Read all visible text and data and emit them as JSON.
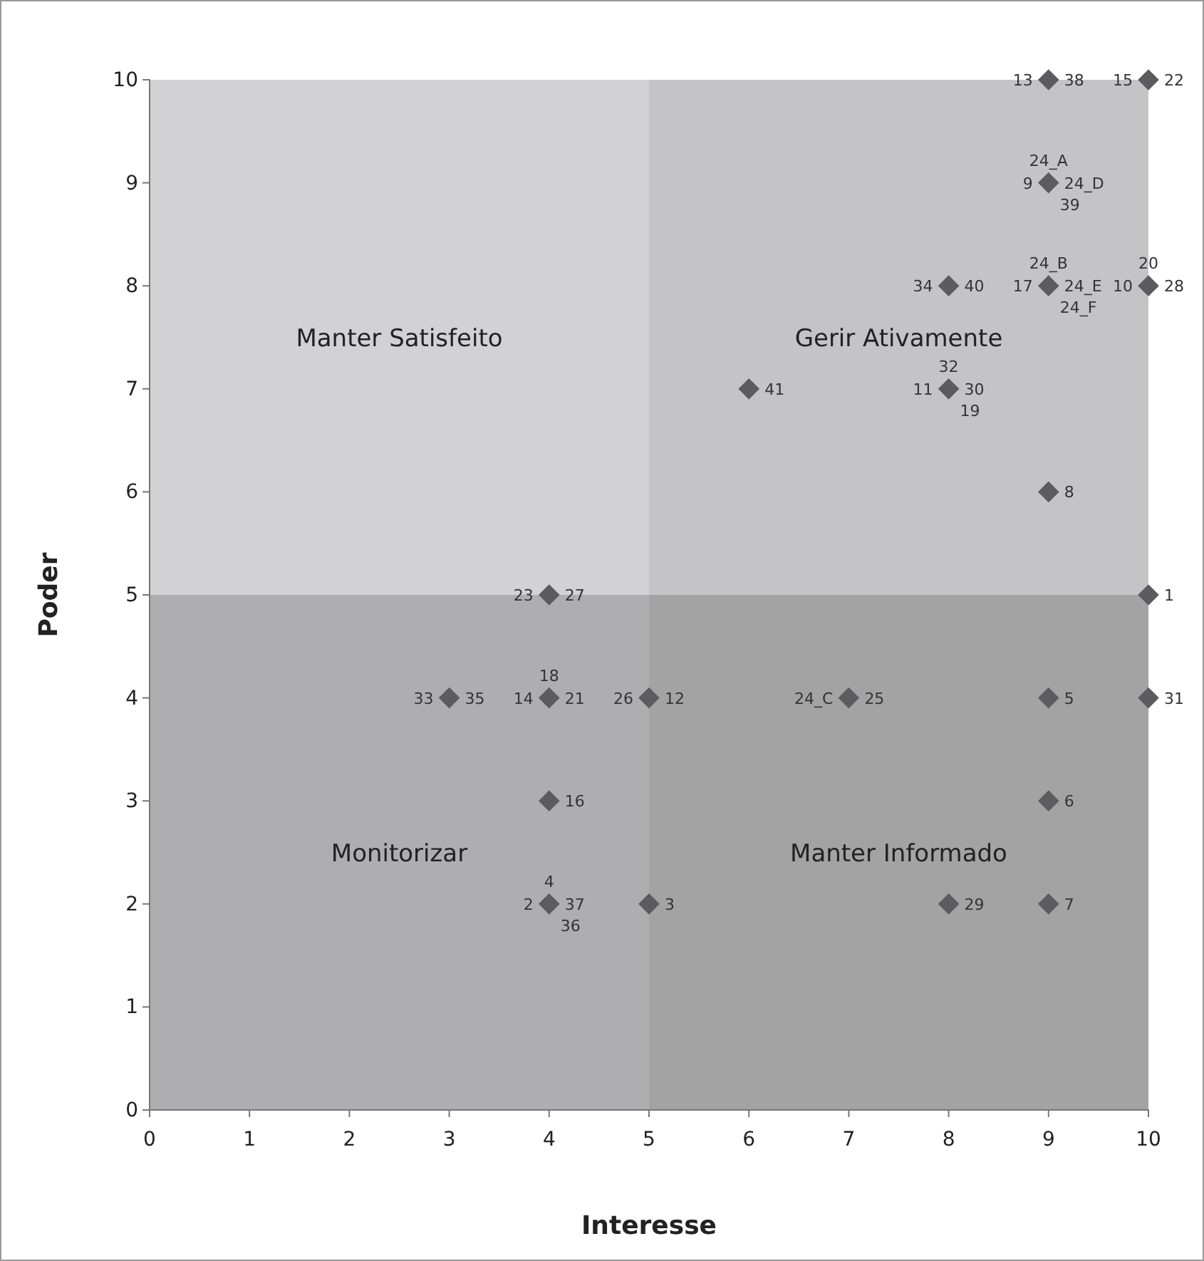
{
  "chart_data": {
    "type": "scatter",
    "xlabel": "Interesse",
    "ylabel": "Poder",
    "xlim": [
      0,
      10
    ],
    "ylim": [
      0,
      10
    ],
    "xticks": [
      0,
      1,
      2,
      3,
      4,
      5,
      6,
      7,
      8,
      9,
      10
    ],
    "yticks": [
      0,
      1,
      2,
      3,
      4,
      5,
      6,
      7,
      8,
      9,
      10
    ],
    "grid": false,
    "marker": "diamond",
    "bands": [
      {
        "axis": "x",
        "from": 5,
        "to": 10,
        "color": "#eeeeee"
      },
      {
        "axis": "y",
        "from": 0,
        "to": 5,
        "color": "#d4d4d4"
      }
    ],
    "series": [
      {
        "color": "#5c5c5e",
        "x": [
          9,
          10,
          9,
          8,
          9,
          10,
          6,
          8,
          9,
          10,
          4,
          4,
          3,
          5,
          7,
          9,
          10,
          4,
          9,
          4,
          5,
          8,
          9
        ],
        "values": [
          10,
          10,
          9,
          8,
          8,
          8,
          7,
          7,
          6,
          5,
          5,
          4,
          4,
          4,
          4,
          4,
          4,
          3,
          3,
          2,
          2,
          2,
          2
        ]
      }
    ],
    "annotations": [
      "Manter Satisfeito",
      "Gerir Ativamente",
      "Monitorizar",
      "Manter Informado",
      {
        "text": "13",
        "x": 9,
        "y": 10
      },
      {
        "text": "38",
        "x": 9,
        "y": 10
      },
      {
        "text": "15",
        "x": 10,
        "y": 10
      },
      {
        "text": "22",
        "x": 10,
        "y": 10
      },
      {
        "text": "9",
        "x": 9,
        "y": 9
      },
      {
        "text": "24_D",
        "x": 9,
        "y": 9
      },
      {
        "text": "24_A",
        "x": 9,
        "y": 9
      },
      {
        "text": "39",
        "x": 9,
        "y": 9
      },
      {
        "text": "34",
        "x": 8,
        "y": 8
      },
      {
        "text": "40",
        "x": 8,
        "y": 8
      },
      {
        "text": "17",
        "x": 9,
        "y": 8
      },
      {
        "text": "24_E",
        "x": 9,
        "y": 8
      },
      {
        "text": "24_B",
        "x": 9,
        "y": 8
      },
      {
        "text": "24_F",
        "x": 9,
        "y": 8
      },
      {
        "text": "10",
        "x": 10,
        "y": 8
      },
      {
        "text": "28",
        "x": 10,
        "y": 8
      },
      {
        "text": "20",
        "x": 10,
        "y": 8
      },
      {
        "text": "41",
        "x": 6,
        "y": 7
      },
      {
        "text": "11",
        "x": 8,
        "y": 7
      },
      {
        "text": "30",
        "x": 8,
        "y": 7
      },
      {
        "text": "32",
        "x": 8,
        "y": 7
      },
      {
        "text": "19",
        "x": 8,
        "y": 7
      },
      {
        "text": "8",
        "x": 9,
        "y": 6
      },
      {
        "text": "1",
        "x": 10,
        "y": 5
      },
      {
        "text": "23",
        "x": 4,
        "y": 5
      },
      {
        "text": "27",
        "x": 4,
        "y": 5
      },
      {
        "text": "14",
        "x": 4,
        "y": 4
      },
      {
        "text": "21",
        "x": 4,
        "y": 4
      },
      {
        "text": "18",
        "x": 4,
        "y": 4
      },
      {
        "text": "33",
        "x": 3,
        "y": 4
      },
      {
        "text": "35",
        "x": 3,
        "y": 4
      },
      {
        "text": "26",
        "x": 5,
        "y": 4
      },
      {
        "text": "12",
        "x": 5,
        "y": 4
      },
      {
        "text": "24_C",
        "x": 7,
        "y": 4
      },
      {
        "text": "25",
        "x": 7,
        "y": 4
      },
      {
        "text": "5",
        "x": 9,
        "y": 4
      },
      {
        "text": "31",
        "x": 10,
        "y": 4
      },
      {
        "text": "16",
        "x": 4,
        "y": 3
      },
      {
        "text": "6",
        "x": 9,
        "y": 3
      },
      {
        "text": "2",
        "x": 4,
        "y": 2
      },
      {
        "text": "37",
        "x": 4,
        "y": 2
      },
      {
        "text": "4",
        "x": 4,
        "y": 2
      },
      {
        "text": "36",
        "x": 4,
        "y": 2
      },
      {
        "text": "3",
        "x": 5,
        "y": 2
      },
      {
        "text": "29",
        "x": 8,
        "y": 2
      },
      {
        "text": "7",
        "x": 9,
        "y": 2
      }
    ]
  }
}
